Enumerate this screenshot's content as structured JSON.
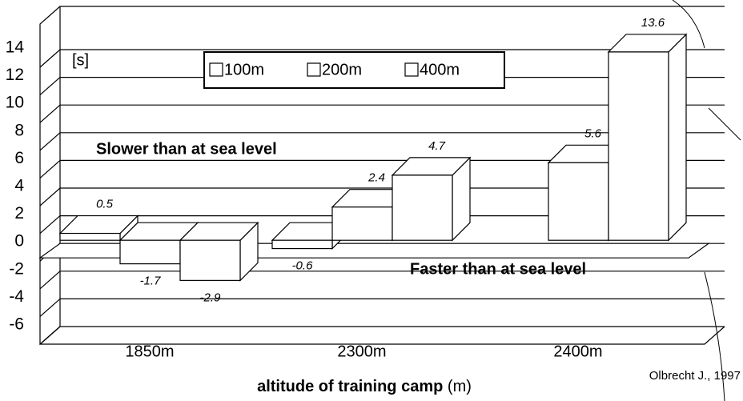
{
  "chart_data": {
    "type": "bar3d",
    "unit": "[s]",
    "categories": [
      "1850m",
      "2300m",
      "2400m"
    ],
    "series": [
      {
        "name": "100m",
        "color": "#ffffff",
        "values": [
          0.5,
          -0.6,
          null
        ]
      },
      {
        "name": "200m",
        "color": "#ffffff",
        "values": [
          -1.7,
          2.4,
          5.6
        ]
      },
      {
        "name": "400m",
        "color": "#ffffff",
        "values": [
          -2.9,
          4.7,
          13.6
        ]
      }
    ],
    "ylim": [
      -6,
      14
    ],
    "yticks": [
      -6,
      -4,
      -2,
      0,
      2,
      4,
      6,
      8,
      10,
      12,
      14
    ],
    "grid": true,
    "annotations": [
      "Slower than at sea level",
      "Faster than at sea level"
    ],
    "xlabel": "altitude of training camp",
    "xlabel_unit": "(m)",
    "source": "Olbrecht J., 1997"
  }
}
